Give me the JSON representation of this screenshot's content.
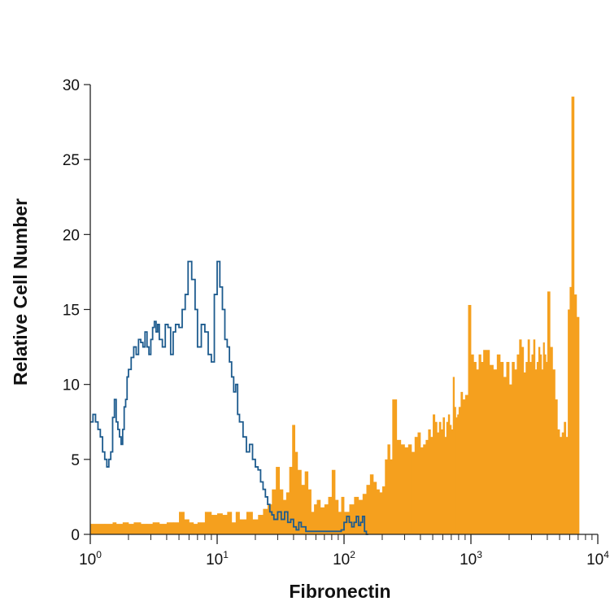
{
  "chart_data": {
    "type": "area",
    "title": "",
    "xlabel": "Fibronectin",
    "ylabel": "Relative Cell Number",
    "x_scale": "log",
    "xlim": [
      1,
      10000
    ],
    "ylim": [
      0,
      30
    ],
    "x_ticks": [
      {
        "base": "10",
        "exp": "0"
      },
      {
        "base": "10",
        "exp": "1"
      },
      {
        "base": "10",
        "exp": "2"
      },
      {
        "base": "10",
        "exp": "3"
      },
      {
        "base": "10",
        "exp": "4"
      }
    ],
    "y_ticks": [
      "0",
      "5",
      "10",
      "15",
      "20",
      "25",
      "30"
    ],
    "grid": false,
    "legend": "none",
    "colors": {
      "filled": "#f5a01e",
      "outline": "#1d5b8e",
      "axis": "#222222"
    },
    "series": [
      {
        "style": "filled-histogram",
        "color": "#f5a01e",
        "points": [
          [
            1.0,
            0.7
          ],
          [
            1.3,
            0.7
          ],
          [
            1.5,
            0.8
          ],
          [
            1.6,
            0.7
          ],
          [
            1.8,
            0.8
          ],
          [
            2.0,
            0.7
          ],
          [
            2.2,
            0.8
          ],
          [
            2.5,
            0.7
          ],
          [
            2.8,
            0.7
          ],
          [
            3.1,
            0.8
          ],
          [
            3.5,
            0.7
          ],
          [
            4.0,
            0.8
          ],
          [
            4.5,
            0.8
          ],
          [
            5.0,
            1.5
          ],
          [
            5.5,
            1.0
          ],
          [
            6.0,
            0.8
          ],
          [
            6.5,
            0.7
          ],
          [
            7.0,
            0.8
          ],
          [
            8.0,
            1.5
          ],
          [
            9.0,
            1.3
          ],
          [
            10.0,
            1.4
          ],
          [
            11.0,
            1.3
          ],
          [
            12.0,
            1.5
          ],
          [
            13.0,
            0.8
          ],
          [
            14.0,
            1.5
          ],
          [
            15.0,
            1.0
          ],
          [
            17.0,
            1.5
          ],
          [
            19.0,
            1.0
          ],
          [
            21.0,
            1.3
          ],
          [
            23.0,
            1.7
          ],
          [
            25.0,
            2.0
          ],
          [
            27.0,
            3.0
          ],
          [
            29.0,
            4.5
          ],
          [
            31.0,
            3.0
          ],
          [
            33.0,
            2.3
          ],
          [
            35.0,
            2.8
          ],
          [
            37.0,
            4.5
          ],
          [
            39.0,
            7.3
          ],
          [
            41.0,
            5.5
          ],
          [
            43.0,
            4.3
          ],
          [
            46.0,
            3.3
          ],
          [
            49.0,
            4.2
          ],
          [
            52.0,
            3.0
          ],
          [
            55.0,
            1.5
          ],
          [
            58.0,
            2.0
          ],
          [
            61.0,
            2.3
          ],
          [
            65.0,
            1.8
          ],
          [
            70.0,
            2.0
          ],
          [
            75.0,
            2.5
          ],
          [
            80.0,
            4.3
          ],
          [
            85.0,
            2.3
          ],
          [
            90.0,
            1.5
          ],
          [
            95.0,
            2.5
          ],
          [
            100.0,
            1.5
          ],
          [
            110.0,
            2.0
          ],
          [
            120.0,
            2.5
          ],
          [
            130.0,
            2.3
          ],
          [
            140.0,
            2.7
          ],
          [
            150.0,
            3.3
          ],
          [
            160.0,
            4.0
          ],
          [
            170.0,
            3.5
          ],
          [
            180.0,
            3.0
          ],
          [
            190.0,
            2.8
          ],
          [
            200.0,
            3.2
          ],
          [
            210.0,
            5.0
          ],
          [
            220.0,
            6.0
          ],
          [
            230.0,
            5.0
          ],
          [
            240.0,
            9.0
          ],
          [
            260.0,
            6.3
          ],
          [
            280.0,
            6.0
          ],
          [
            300.0,
            5.8
          ],
          [
            320.0,
            6.0
          ],
          [
            340.0,
            5.5
          ],
          [
            360.0,
            6.5
          ],
          [
            380.0,
            6.8
          ],
          [
            400.0,
            5.8
          ],
          [
            420.0,
            6.0
          ],
          [
            440.0,
            6.3
          ],
          [
            460.0,
            7.0
          ],
          [
            480.0,
            6.5
          ],
          [
            500.0,
            8.0
          ],
          [
            520.0,
            7.5
          ],
          [
            540.0,
            6.8
          ],
          [
            560.0,
            7.5
          ],
          [
            580.0,
            7.0
          ],
          [
            600.0,
            7.8
          ],
          [
            620.0,
            6.5
          ],
          [
            640.0,
            7.5
          ],
          [
            660.0,
            8.0
          ],
          [
            680.0,
            7.3
          ],
          [
            700.0,
            7.0
          ],
          [
            720.0,
            10.5
          ],
          [
            740.0,
            8.5
          ],
          [
            760.0,
            7.8
          ],
          [
            780.0,
            8.0
          ],
          [
            800.0,
            8.5
          ],
          [
            830.0,
            9.5
          ],
          [
            860.0,
            9.0
          ],
          [
            900.0,
            9.3
          ],
          [
            950.0,
            15.3
          ],
          [
            1000.0,
            12.0
          ],
          [
            1050.0,
            11.5
          ],
          [
            1100.0,
            11.0
          ],
          [
            1150.0,
            12.0
          ],
          [
            1200.0,
            11.5
          ],
          [
            1250.0,
            12.3
          ],
          [
            1300.0,
            12.3
          ],
          [
            1400.0,
            11.3
          ],
          [
            1500.0,
            11.0
          ],
          [
            1600.0,
            12.0
          ],
          [
            1700.0,
            11.5
          ],
          [
            1800.0,
            10.5
          ],
          [
            1900.0,
            11.5
          ],
          [
            2000.0,
            10.0
          ],
          [
            2100.0,
            11.5
          ],
          [
            2200.0,
            11.0
          ],
          [
            2300.0,
            12.0
          ],
          [
            2400.0,
            13.0
          ],
          [
            2500.0,
            12.5
          ],
          [
            2600.0,
            10.8
          ],
          [
            2700.0,
            11.5
          ],
          [
            2800.0,
            13.0
          ],
          [
            2900.0,
            11.5
          ],
          [
            3000.0,
            12.0
          ],
          [
            3100.0,
            13.0
          ],
          [
            3200.0,
            11.0
          ],
          [
            3300.0,
            11.5
          ],
          [
            3400.0,
            12.5
          ],
          [
            3500.0,
            12.0
          ],
          [
            3600.0,
            11.0
          ],
          [
            3700.0,
            12.8
          ],
          [
            3800.0,
            12.0
          ],
          [
            3900.0,
            11.5
          ],
          [
            4000.0,
            16.2
          ],
          [
            4200.0,
            12.5
          ],
          [
            4400.0,
            11.0
          ],
          [
            4600.0,
            9.0
          ],
          [
            4800.0,
            7.0
          ],
          [
            5000.0,
            6.5
          ],
          [
            5200.0,
            6.8
          ],
          [
            5400.0,
            7.5
          ],
          [
            5600.0,
            6.5
          ],
          [
            5800.0,
            15.0
          ],
          [
            6000.0,
            16.5
          ],
          [
            6200.0,
            29.2
          ],
          [
            6500.0,
            16.0
          ],
          [
            6800.0,
            14.5
          ]
        ]
      },
      {
        "style": "outline-histogram",
        "color": "#1d5b8e",
        "points": [
          [
            1.0,
            7.5
          ],
          [
            1.05,
            8.0
          ],
          [
            1.1,
            7.5
          ],
          [
            1.15,
            7.0
          ],
          [
            1.2,
            6.5
          ],
          [
            1.25,
            5.5
          ],
          [
            1.3,
            5.0
          ],
          [
            1.35,
            4.5
          ],
          [
            1.4,
            5.0
          ],
          [
            1.45,
            5.5
          ],
          [
            1.5,
            7.8
          ],
          [
            1.55,
            9.0
          ],
          [
            1.6,
            7.5
          ],
          [
            1.65,
            7.0
          ],
          [
            1.7,
            6.5
          ],
          [
            1.75,
            6.0
          ],
          [
            1.8,
            7.0
          ],
          [
            1.85,
            8.5
          ],
          [
            1.9,
            9.0
          ],
          [
            1.95,
            10.5
          ],
          [
            2.0,
            11.0
          ],
          [
            2.1,
            11.8
          ],
          [
            2.2,
            12.5
          ],
          [
            2.3,
            12.0
          ],
          [
            2.4,
            13.0
          ],
          [
            2.5,
            12.8
          ],
          [
            2.6,
            12.5
          ],
          [
            2.7,
            13.5
          ],
          [
            2.8,
            12.5
          ],
          [
            2.9,
            12.0
          ],
          [
            3.0,
            13.0
          ],
          [
            3.1,
            13.8
          ],
          [
            3.2,
            14.2
          ],
          [
            3.3,
            13.5
          ],
          [
            3.4,
            14.0
          ],
          [
            3.5,
            13.0
          ],
          [
            3.7,
            12.5
          ],
          [
            3.9,
            14.0
          ],
          [
            4.1,
            13.8
          ],
          [
            4.3,
            12.0
          ],
          [
            4.5,
            13.5
          ],
          [
            4.7,
            14.0
          ],
          [
            5.0,
            13.8
          ],
          [
            5.3,
            15.0
          ],
          [
            5.6,
            16.0
          ],
          [
            5.9,
            18.2
          ],
          [
            6.3,
            17.0
          ],
          [
            6.7,
            15.0
          ],
          [
            7.0,
            12.5
          ],
          [
            7.5,
            14.0
          ],
          [
            8.0,
            13.5
          ],
          [
            8.5,
            12.0
          ],
          [
            9.0,
            11.5
          ],
          [
            9.5,
            16.0
          ],
          [
            10.0,
            18.2
          ],
          [
            10.5,
            16.5
          ],
          [
            11.0,
            15.0
          ],
          [
            11.5,
            13.0
          ],
          [
            12.0,
            12.5
          ],
          [
            12.5,
            11.5
          ],
          [
            13.0,
            10.5
          ],
          [
            13.5,
            9.5
          ],
          [
            14.0,
            10.0
          ],
          [
            14.5,
            8.0
          ],
          [
            15.0,
            7.5
          ],
          [
            16.0,
            6.5
          ],
          [
            17.0,
            5.5
          ],
          [
            18.0,
            6.0
          ],
          [
            19.0,
            5.0
          ],
          [
            20.0,
            4.5
          ],
          [
            21.0,
            4.3
          ],
          [
            22.0,
            3.5
          ],
          [
            23.0,
            3.0
          ],
          [
            24.0,
            2.5
          ],
          [
            25.0,
            2.0
          ],
          [
            26.0,
            1.5
          ],
          [
            27.0,
            1.3
          ],
          [
            28.0,
            1.0
          ],
          [
            30.0,
            1.5
          ],
          [
            32.0,
            1.0
          ],
          [
            34.0,
            1.5
          ],
          [
            36.0,
            0.8
          ],
          [
            38.0,
            1.0
          ],
          [
            40.0,
            0.5
          ],
          [
            42.0,
            0.3
          ],
          [
            44.0,
            0.8
          ],
          [
            46.0,
            0.5
          ],
          [
            48.0,
            0.5
          ],
          [
            50.0,
            0.2
          ],
          [
            55.0,
            0.2
          ],
          [
            60.0,
            0.2
          ],
          [
            65.0,
            0.2
          ],
          [
            70.0,
            0.2
          ],
          [
            75.0,
            0.2
          ],
          [
            80.0,
            0.2
          ],
          [
            85.0,
            0.2
          ],
          [
            90.0,
            0.2
          ],
          [
            95.0,
            0.3
          ],
          [
            100.0,
            0.8
          ],
          [
            105.0,
            1.2
          ],
          [
            110.0,
            0.8
          ],
          [
            115.0,
            0.5
          ],
          [
            120.0,
            0.8
          ],
          [
            125.0,
            1.2
          ],
          [
            130.0,
            0.6
          ],
          [
            135.0,
            0.8
          ],
          [
            140.0,
            1.2
          ],
          [
            145.0,
            0.2
          ],
          [
            150.0,
            0.0
          ]
        ]
      }
    ]
  }
}
